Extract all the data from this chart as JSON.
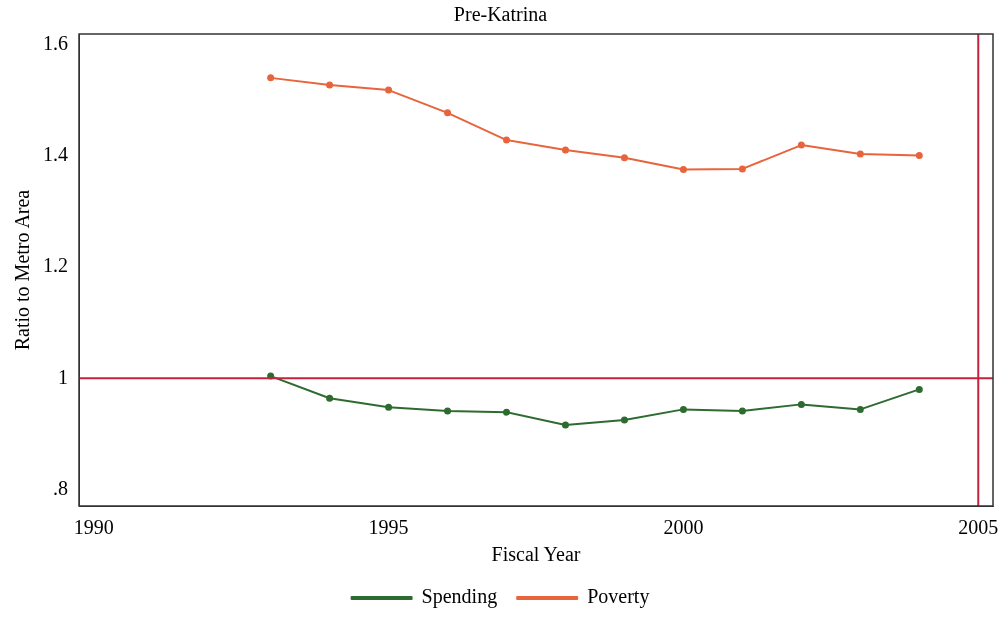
{
  "chart_data": {
    "type": "line",
    "title": "Pre-Katrina",
    "xlabel": "Fiscal Year",
    "ylabel": "Ratio to Metro Area",
    "x": [
      1993,
      1994,
      1995,
      1996,
      1997,
      1998,
      1999,
      2000,
      2001,
      2002,
      2003,
      2004
    ],
    "series": [
      {
        "name": "Spending",
        "color": "#2e6b30",
        "values": [
          1.004,
          0.964,
          0.948,
          0.941,
          0.939,
          0.916,
          0.925,
          0.944,
          0.941,
          0.953,
          0.944,
          0.98
        ]
      },
      {
        "name": "Poverty",
        "color": "#e8643c",
        "values": [
          1.541,
          1.528,
          1.519,
          1.478,
          1.429,
          1.411,
          1.397,
          1.376,
          1.377,
          1.42,
          1.404,
          1.401
        ]
      }
    ],
    "xlim": [
      1989.75,
      2005.25
    ],
    "xticks": [
      1990,
      1995,
      2000,
      2005
    ],
    "ylim": [
      0.77,
      1.62
    ],
    "yticks": [
      {
        "value": 0.8,
        "label": ".8"
      },
      1,
      1.2,
      1.4,
      1.6
    ],
    "ref_lines": [
      {
        "axis": "y",
        "value": 1,
        "color": "#c8203f"
      },
      {
        "axis": "x",
        "value": 2005,
        "color": "#c8203f"
      }
    ],
    "grid": false,
    "legend": "bottom",
    "marker": "circle",
    "line_style": "solid"
  }
}
